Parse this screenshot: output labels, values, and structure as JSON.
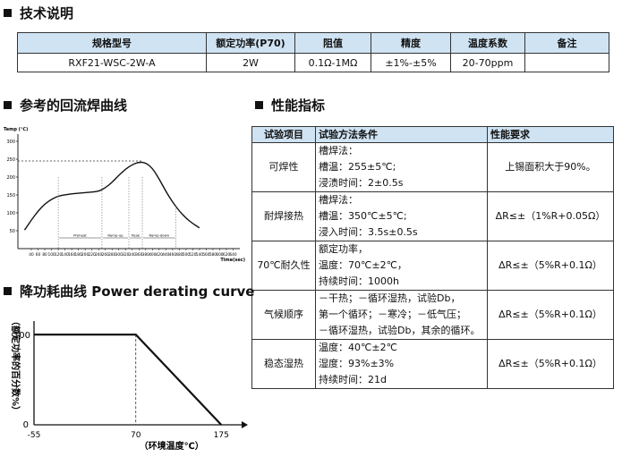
{
  "sections": {
    "tech": "技术说明",
    "reflow": "参考的回流焊曲线",
    "perf": "性能指标",
    "derating": "降功耗曲线  Power derating curve"
  },
  "spec_table": {
    "headers": [
      "规格型号",
      "额定功率(P70)",
      "阻值",
      "精度",
      "温度系数",
      "备注"
    ],
    "row": [
      "RXF21-WSC-2W-A",
      "2W",
      "0.1Ω-1MΩ",
      "±1%-±5%",
      "20-70ppm",
      ""
    ]
  },
  "perf_table": {
    "headers": [
      "试验项目",
      "试验方法条件",
      "性能要求"
    ],
    "rows": [
      {
        "item": "可焊性",
        "cond": [
          "槽焊法：",
          "槽温：255±5℃;",
          "浸渍时间：2±0.5s"
        ],
        "req": "上锡面积大于90%。"
      },
      {
        "item": "耐焊接热",
        "cond": [
          "槽焊法：",
          "槽温：350℃±5℃;",
          "浸入时间：3.5s±0.5s"
        ],
        "req": "ΔR≤±（1%R+0.05Ω）"
      },
      {
        "item": "70℃耐久性",
        "cond": [
          "额定功率，",
          "温度：70℃±2℃，",
          "持续时间：1000h"
        ],
        "req": "ΔR≤±（5%R+0.1Ω）"
      },
      {
        "item": "气候顺序",
        "cond": [
          "－干热；－循环湿热，试验Db，",
          "第一个循环；－寒冷；－低气压；",
          "－循环湿热，试验Db，其余的循环。"
        ],
        "req": "ΔR≤±（5%R+0.1Ω）"
      },
      {
        "item": "稳态湿热",
        "cond": [
          "温度：40℃±2℃",
          "湿度：93%±3%",
          "持续时间：21d"
        ],
        "req": "ΔR≤±（5%R+0.1Ω）"
      }
    ]
  },
  "reflow_chart": {
    "chart_data": {
      "type": "line",
      "ylabel": "Temp (℃)",
      "xlabel": "Time(sec)",
      "x_ticks": [
        40,
        60,
        80,
        100,
        120,
        140,
        160,
        180,
        200,
        220,
        240,
        260,
        280,
        300,
        320,
        340,
        360,
        380,
        400,
        420,
        440,
        460,
        480,
        500,
        520,
        540,
        560,
        580,
        600,
        620,
        640
      ],
      "y_ticks": [
        50,
        100,
        150,
        200,
        250,
        300
      ],
      "xlim": [
        0,
        660
      ],
      "ylim": [
        0,
        320
      ],
      "reference_line": 245,
      "x": [
        20,
        40,
        60,
        80,
        100,
        120,
        150,
        180,
        210,
        240,
        260,
        280,
        300,
        320,
        340,
        360,
        380,
        400,
        420,
        440,
        460,
        480,
        500,
        520,
        540
      ],
      "y": [
        52,
        80,
        105,
        125,
        138,
        147,
        152,
        155,
        157,
        160,
        170,
        185,
        205,
        222,
        235,
        242,
        240,
        225,
        195,
        160,
        130,
        105,
        85,
        70,
        58
      ],
      "regions": [
        {
          "label": "Preheat",
          "from": 120,
          "to": 250
        },
        {
          "label": "Ramp-up",
          "from": 250,
          "to": 330
        },
        {
          "label": "Peak",
          "from": 330,
          "to": 370
        },
        {
          "label": "Ramp-down",
          "from": 370,
          "to": 470
        }
      ]
    }
  },
  "derating_chart": {
    "chart_data": {
      "type": "line",
      "xlabel": "（环境温度℃）",
      "ylabel": "（额定功率的百分数%）",
      "x": [
        -55,
        70,
        175
      ],
      "y": [
        100,
        100,
        0
      ],
      "x_ticks": [
        "-55",
        "70",
        "175"
      ],
      "y_ticks": [
        "0",
        "100"
      ]
    }
  }
}
